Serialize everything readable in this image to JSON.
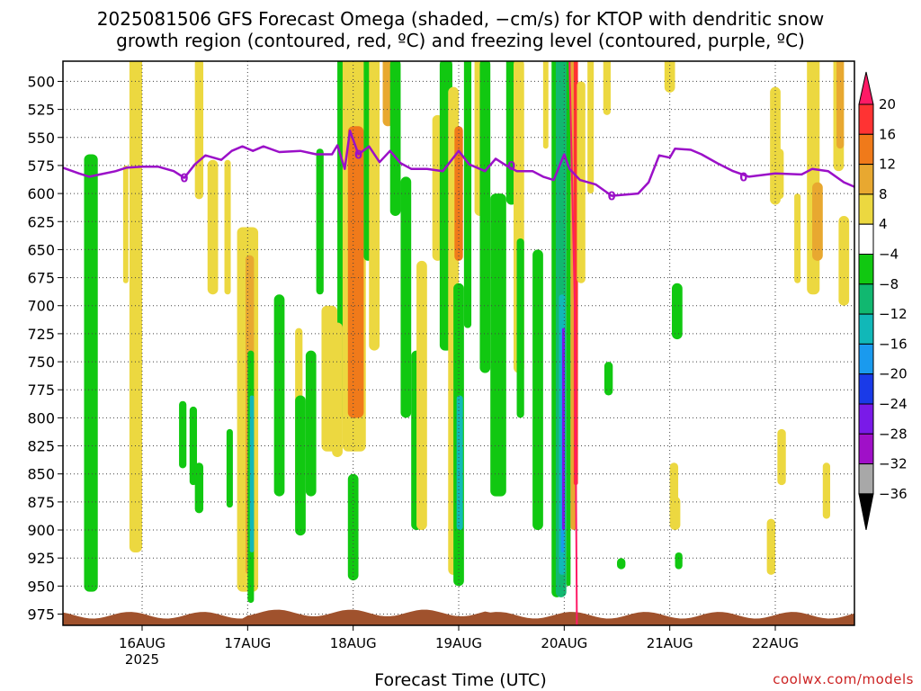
{
  "title_line1": "2025081506 GFS Forecast Omega (shaded, −cm/s) for KTOP with dendritic snow",
  "title_line2": "growth region (contoured, red, ºC) and freezing level (contoured, purple, ºC)",
  "xaxis_title": "Forecast Time (UTC)",
  "credit": "coolwx.com/models",
  "chart_data": {
    "type": "heatmap",
    "title": "2025081506 GFS Forecast Omega (shaded, −cm/s) for KTOP with dendritic snow growth region (contoured, red, ºC) and freezing level (contoured, purple, ºC)",
    "xlabel": "Forecast Time (UTC)",
    "y_ticks": [
      500,
      525,
      550,
      575,
      600,
      625,
      650,
      675,
      700,
      725,
      750,
      775,
      800,
      825,
      850,
      875,
      900,
      925,
      950,
      975
    ],
    "ylim": [
      482,
      985
    ],
    "y_reversed": true,
    "x_ticks": [
      {
        "label": "16AUG",
        "sub": "2025",
        "day": 16
      },
      {
        "label": "17AUG",
        "sub": "",
        "day": 17
      },
      {
        "label": "18AUG",
        "sub": "",
        "day": 18
      },
      {
        "label": "19AUG",
        "sub": "",
        "day": 19
      },
      {
        "label": "20AUG",
        "sub": "",
        "day": 20
      },
      {
        "label": "21AUG",
        "sub": "",
        "day": 21
      },
      {
        "label": "22AUG",
        "sub": "",
        "day": 22
      }
    ],
    "xlim": [
      15.25,
      22.75
    ],
    "grid": true,
    "colorbar": {
      "labels": [
        "20",
        "16",
        "12",
        "8",
        "4",
        "−4",
        "−8",
        "−12",
        "−16",
        "−20",
        "−24",
        "−28",
        "−32",
        "−36"
      ],
      "colors": [
        "#ff1a66",
        "#ff3333",
        "#f07a1a",
        "#e8a830",
        "#ecd840",
        "#ffffff",
        "#11c811",
        "#11b870",
        "#11b8b8",
        "#1a9aee",
        "#1a3ae8",
        "#7a1ae8",
        "#a010c8",
        "#a8a8a8",
        "#000000"
      ]
    },
    "freezing_level": {
      "color": "#9b10c8",
      "label": "0",
      "points": [
        [
          15.25,
          577
        ],
        [
          15.4,
          582
        ],
        [
          15.5,
          585
        ],
        [
          15.6,
          583
        ],
        [
          15.75,
          580
        ],
        [
          15.85,
          577
        ],
        [
          16.0,
          576
        ],
        [
          16.15,
          576
        ],
        [
          16.3,
          580
        ],
        [
          16.4,
          586
        ],
        [
          16.5,
          574
        ],
        [
          16.6,
          566
        ],
        [
          16.75,
          570
        ],
        [
          16.85,
          562
        ],
        [
          16.95,
          558
        ],
        [
          17.05,
          562
        ],
        [
          17.15,
          558
        ],
        [
          17.3,
          563
        ],
        [
          17.5,
          562
        ],
        [
          17.65,
          565
        ],
        [
          17.8,
          565
        ],
        [
          17.85,
          557
        ],
        [
          17.92,
          578
        ],
        [
          17.97,
          544
        ],
        [
          18.05,
          565
        ],
        [
          18.15,
          558
        ],
        [
          18.25,
          572
        ],
        [
          18.35,
          562
        ],
        [
          18.45,
          573
        ],
        [
          18.55,
          578
        ],
        [
          18.7,
          578
        ],
        [
          18.85,
          580
        ],
        [
          19.0,
          562
        ],
        [
          19.1,
          574
        ],
        [
          19.25,
          580
        ],
        [
          19.35,
          569
        ],
        [
          19.45,
          575
        ],
        [
          19.55,
          580
        ],
        [
          19.7,
          580
        ],
        [
          19.8,
          585
        ],
        [
          19.9,
          588
        ],
        [
          20.0,
          565
        ],
        [
          20.05,
          578
        ],
        [
          20.15,
          588
        ],
        [
          20.3,
          592
        ],
        [
          20.45,
          602
        ],
        [
          20.7,
          600
        ],
        [
          20.8,
          590
        ],
        [
          20.9,
          566
        ],
        [
          21.0,
          568
        ],
        [
          21.05,
          560
        ],
        [
          21.2,
          561
        ],
        [
          21.3,
          565
        ],
        [
          21.45,
          573
        ],
        [
          21.6,
          580
        ],
        [
          21.75,
          585
        ],
        [
          22.0,
          582
        ],
        [
          22.25,
          583
        ],
        [
          22.35,
          578
        ],
        [
          22.5,
          580
        ],
        [
          22.65,
          590
        ],
        [
          22.75,
          594
        ]
      ]
    },
    "dgz_line": {
      "color": "#ff1a66",
      "points": [
        [
          20.05,
          482
        ],
        [
          20.1,
          700
        ],
        [
          20.12,
          985
        ]
      ]
    },
    "ground_color": "#a0522d"
  }
}
